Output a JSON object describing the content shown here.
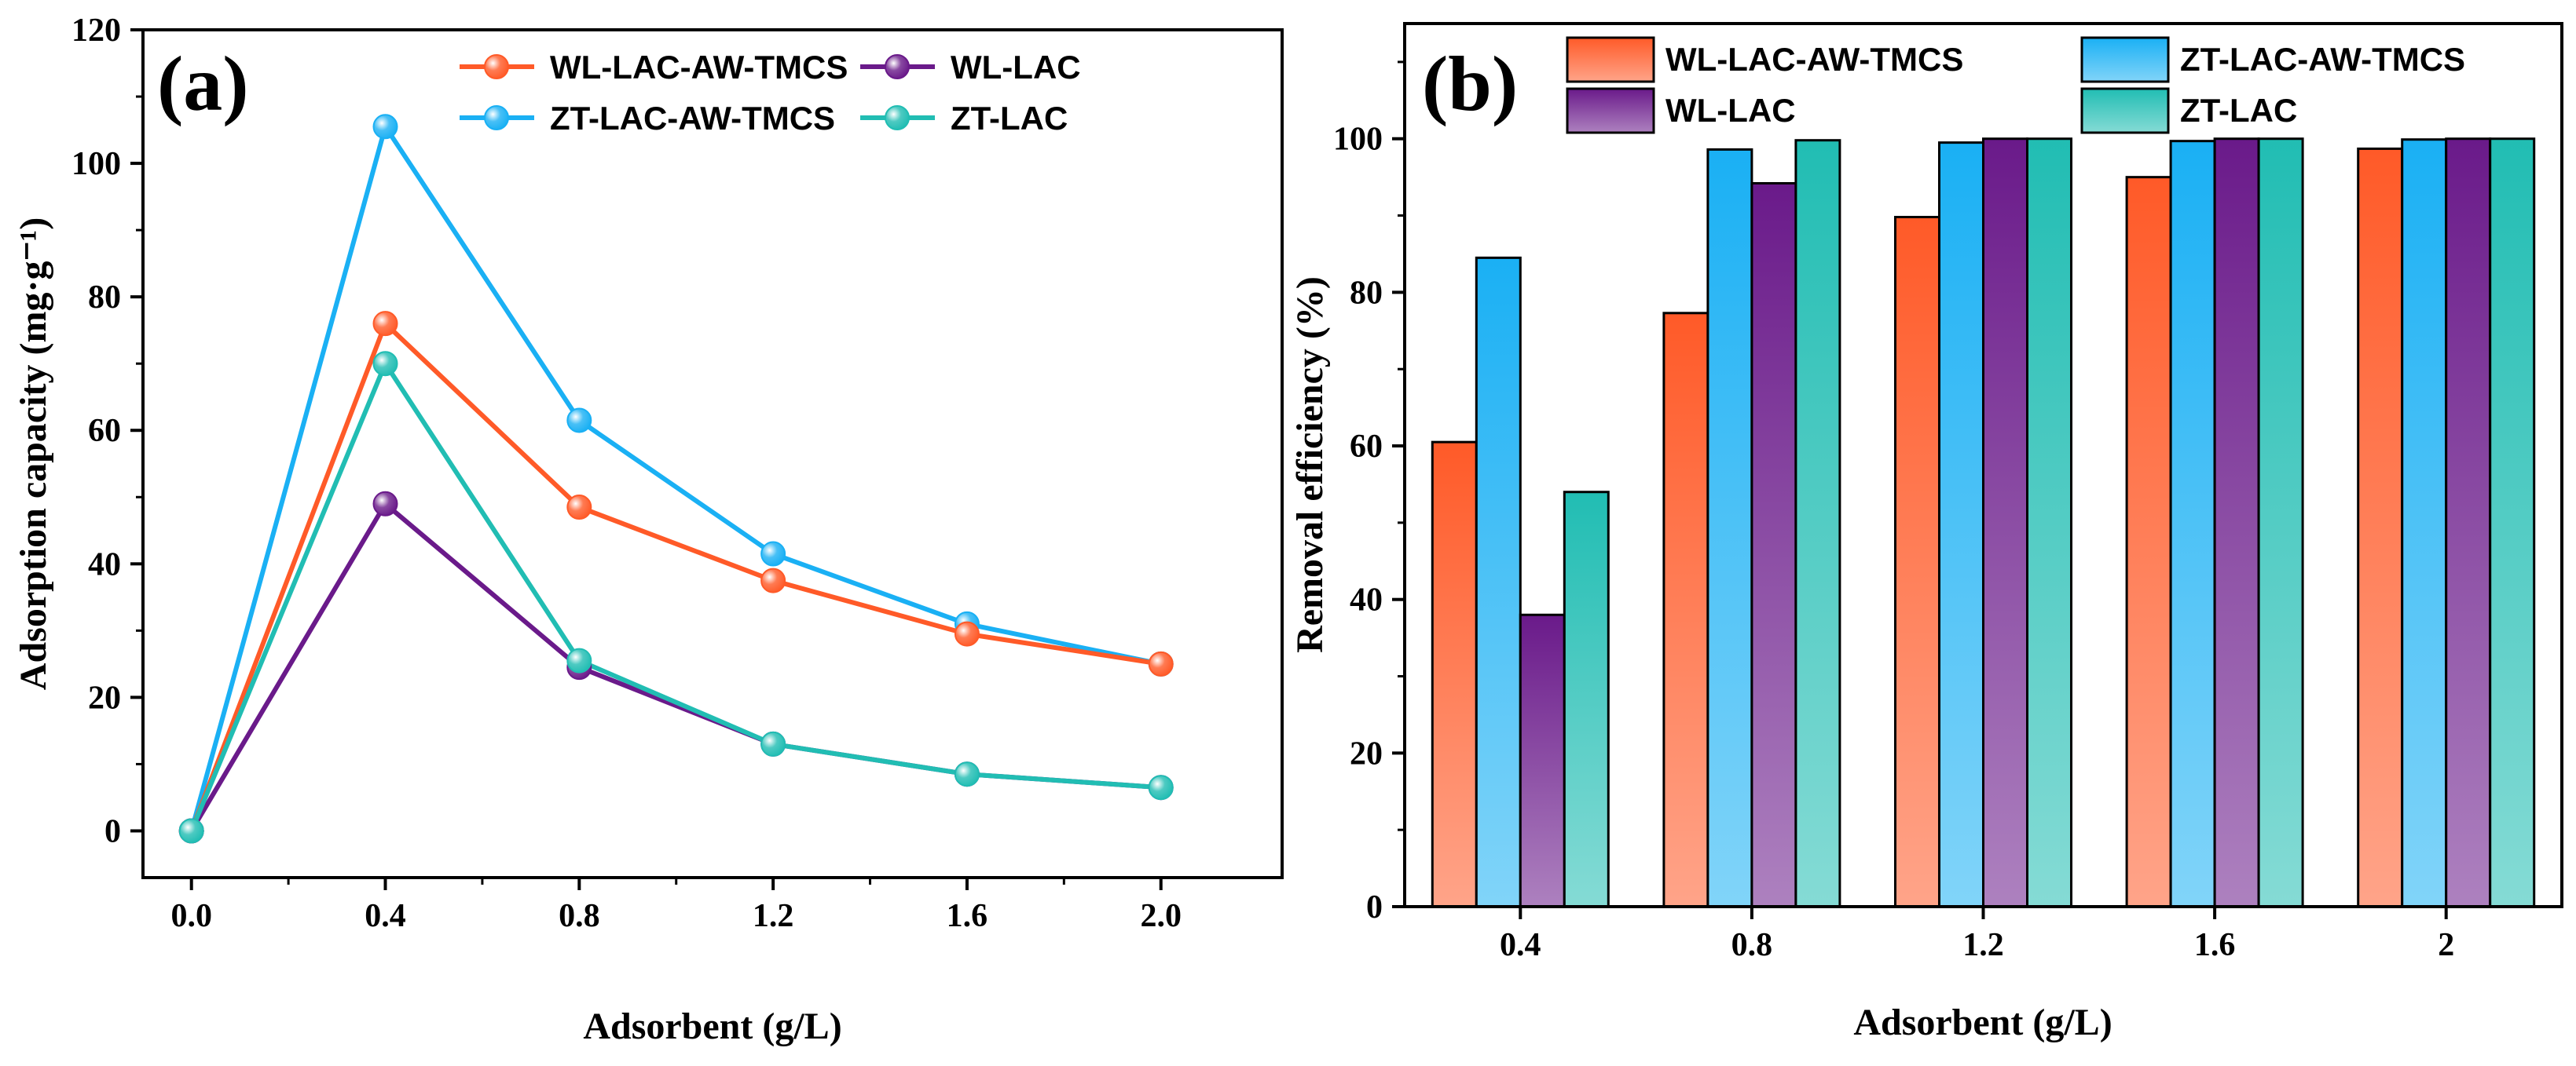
{
  "colors": {
    "wl_aw_tmcs": "#ff5a28",
    "wl_lac": "#6a1a8a",
    "zt_aw_tmcs": "#1ab0f4",
    "zt_lac": "#21bdb3"
  },
  "chart_data": [
    {
      "type": "line",
      "panel_label": "(a)",
      "xlabel": "Adsorbent (g/L)",
      "ylabel": "Adsorption capacity (mg·g⁻¹)",
      "xlim": [
        -0.1,
        2.25
      ],
      "ylim": [
        -7,
        120
      ],
      "x_ticks": [
        0.0,
        0.4,
        0.8,
        1.2,
        1.6,
        2.0
      ],
      "x_tick_labels": [
        "0.0",
        "0.4",
        "0.8",
        "1.2",
        "1.6",
        "2.0"
      ],
      "y_ticks": [
        0,
        20,
        40,
        60,
        80,
        100,
        120
      ],
      "y_tick_labels": [
        "0",
        "20",
        "40",
        "60",
        "80",
        "100",
        "120"
      ],
      "x": [
        0.0,
        0.4,
        0.8,
        1.2,
        1.6,
        2.0
      ],
      "legend_position": "top-right",
      "series": [
        {
          "name": "WL-LAC-AW-TMCS",
          "color_key": "wl_aw_tmcs",
          "values": [
            0,
            76,
            48.5,
            37.5,
            29.5,
            25
          ]
        },
        {
          "name": "WL-LAC",
          "color_key": "wl_lac",
          "values": [
            0,
            49,
            24.5,
            13,
            8.5,
            6.5
          ]
        },
        {
          "name": "ZT-LAC-AW-TMCS",
          "color_key": "zt_aw_tmcs",
          "values": [
            0,
            105.5,
            61.5,
            41.5,
            31,
            25
          ]
        },
        {
          "name": "ZT-LAC",
          "color_key": "zt_lac",
          "values": [
            0,
            70,
            25.5,
            13,
            8.5,
            6.5
          ]
        }
      ]
    },
    {
      "type": "bar",
      "panel_label": "(b)",
      "xlabel": "Adsorbent (g/L)",
      "ylabel": "Removal efficiency (%)",
      "ylim": [
        0,
        115
      ],
      "y_ticks": [
        0,
        20,
        40,
        60,
        80,
        100
      ],
      "y_tick_labels": [
        "0",
        "20",
        "40",
        "60",
        "80",
        "100"
      ],
      "categories": [
        "0.4",
        "0.8",
        "1.2",
        "1.6",
        "2"
      ],
      "legend_position": "top",
      "series": [
        {
          "name": "WL-LAC-AW-TMCS",
          "color_key": "wl_aw_tmcs",
          "values": [
            60.5,
            77.3,
            89.8,
            95,
            98.7
          ]
        },
        {
          "name": "ZT-LAC-AW-TMCS",
          "color_key": "zt_aw_tmcs",
          "values": [
            84.5,
            98.6,
            99.5,
            99.7,
            99.9
          ]
        },
        {
          "name": "WL-LAC",
          "color_key": "wl_lac",
          "values": [
            38,
            94.2,
            100,
            100,
            100
          ]
        },
        {
          "name": "ZT-LAC",
          "color_key": "zt_lac",
          "values": [
            54,
            99.8,
            100,
            100,
            100
          ]
        }
      ]
    }
  ]
}
